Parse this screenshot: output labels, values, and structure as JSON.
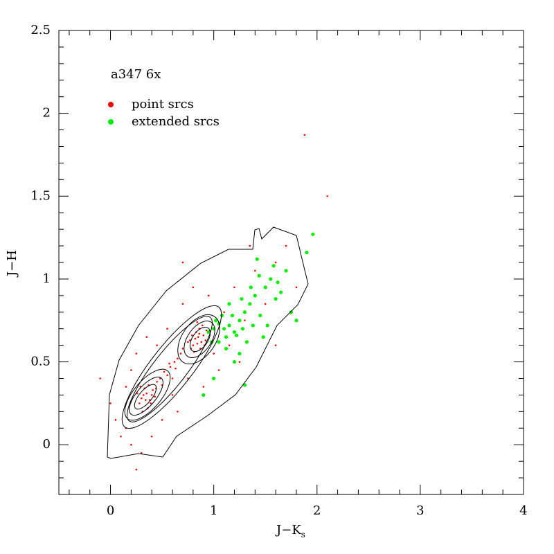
{
  "chart_data": {
    "type": "scatter",
    "annotation": "a347 6x",
    "xlabel": "J−K",
    "xlabel_subscript": "s",
    "ylabel": "J−H",
    "xlim": [
      -0.5,
      4
    ],
    "ylim": [
      -0.3,
      2.5
    ],
    "xticks": [
      0,
      1,
      2,
      3,
      4
    ],
    "yticks": [
      0,
      0.5,
      1,
      1.5,
      2,
      2.5
    ],
    "xminorticks": [
      -0.4,
      -0.2,
      0.2,
      0.4,
      0.6,
      0.8,
      1.2,
      1.4,
      1.6,
      1.8,
      2.2,
      2.4,
      2.6,
      2.8,
      3.2,
      3.4,
      3.6,
      3.8
    ],
    "yminorticks": [
      -0.2,
      -0.1,
      0.1,
      0.2,
      0.3,
      0.4,
      0.6,
      0.7,
      0.8,
      0.9,
      1.1,
      1.2,
      1.3,
      1.4,
      1.6,
      1.7,
      1.8,
      1.9,
      2.1,
      2.2,
      2.3,
      2.4
    ],
    "legend": "upper left",
    "series": [
      {
        "name": "point srcs",
        "color": "#ff0000",
        "x": [
          0.3,
          0.35,
          0.38,
          0.33,
          0.41,
          0.28,
          0.36,
          0.45,
          0.4,
          0.32,
          0.26,
          0.43,
          0.37,
          0.31,
          0.48,
          0.5,
          0.29,
          0.39,
          0.34,
          0.44,
          0.55,
          0.58,
          0.62,
          0.52,
          0.6,
          0.65,
          0.57,
          0.68,
          0.63,
          0.7,
          0.8,
          0.85,
          0.88,
          0.83,
          0.9,
          0.78,
          0.86,
          0.92,
          0.82,
          0.87,
          0.75,
          0.89,
          0.84,
          0.79,
          0.93,
          0.81,
          0.86,
          0.77,
          0.91,
          0.84,
          0.1,
          0.05,
          0.2,
          0.15,
          0.25,
          0.55,
          0.45,
          0.7,
          0.6,
          0.75,
          1.0,
          1.1,
          1.2,
          1.3,
          0.95,
          1.4,
          1.5,
          1.6,
          1.25,
          1.05,
          0.4,
          0.3,
          0.2,
          0.5,
          0.65,
          0.9,
          1.15,
          0.8,
          0.35,
          1.7,
          1.88,
          1.8,
          -0.1,
          0.0,
          2.1,
          1.6,
          0.7,
          1.35,
          0.25,
          0.15
        ],
        "values": [
          0.28,
          0.31,
          0.27,
          0.34,
          0.33,
          0.25,
          0.22,
          0.38,
          0.3,
          0.3,
          0.31,
          0.29,
          0.36,
          0.2,
          0.4,
          0.36,
          0.35,
          0.25,
          0.27,
          0.34,
          0.42,
          0.47,
          0.5,
          0.44,
          0.4,
          0.52,
          0.49,
          0.55,
          0.46,
          0.58,
          0.6,
          0.65,
          0.62,
          0.68,
          0.66,
          0.58,
          0.7,
          0.63,
          0.64,
          0.58,
          0.62,
          0.72,
          0.61,
          0.66,
          0.69,
          0.56,
          0.67,
          0.63,
          0.6,
          0.74,
          0.05,
          0.15,
          0.45,
          0.1,
          0.55,
          0.7,
          0.6,
          0.85,
          0.3,
          0.4,
          0.55,
          0.8,
          0.95,
          0.75,
          0.9,
          1.05,
          0.85,
          1.1,
          0.5,
          0.45,
          0.05,
          -0.05,
          0.0,
          0.15,
          0.2,
          0.35,
          0.6,
          0.95,
          0.65,
          1.2,
          1.87,
          0.95,
          0.4,
          0.25,
          1.5,
          0.6,
          1.1,
          1.2,
          -0.15,
          0.35
        ]
      },
      {
        "name": "extended srcs",
        "color": "#00ee00",
        "x": [
          1.1,
          1.15,
          1.2,
          1.25,
          1.05,
          1.18,
          1.22,
          1.3,
          1.12,
          1.28,
          1.0,
          1.35,
          1.4,
          1.45,
          1.5,
          1.55,
          1.6,
          1.65,
          1.38,
          1.08,
          0.95,
          0.98,
          1.02,
          1.32,
          1.42,
          1.58,
          1.7,
          1.75,
          1.8,
          1.9,
          1.96,
          1.25,
          1.2,
          1.3,
          1.0,
          0.9,
          1.48,
          1.52,
          1.62,
          1.15,
          1.27,
          1.36,
          1.44,
          1.12,
          1.05
        ],
        "values": [
          0.7,
          0.72,
          0.68,
          0.75,
          0.73,
          0.78,
          0.66,
          0.8,
          0.65,
          0.7,
          0.7,
          0.85,
          0.9,
          0.78,
          0.95,
          1.0,
          0.88,
          0.92,
          0.72,
          0.78,
          0.68,
          0.62,
          0.75,
          0.62,
          1.12,
          1.08,
          1.05,
          0.8,
          0.75,
          1.16,
          1.27,
          0.55,
          0.5,
          0.36,
          0.4,
          0.3,
          0.65,
          0.72,
          0.98,
          0.85,
          0.88,
          0.95,
          1.02,
          0.58,
          0.62
        ]
      }
    ]
  }
}
